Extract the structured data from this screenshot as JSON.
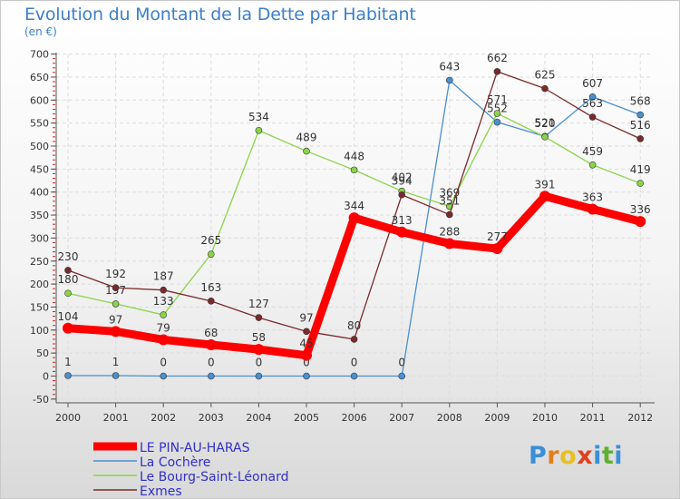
{
  "chart_data": {
    "type": "line",
    "title": "Evolution du Montant de la Dette par Habitant",
    "subtitle": "(en €)",
    "categories": [
      "2000",
      "2001",
      "2002",
      "2003",
      "2004",
      "2005",
      "2006",
      "2007",
      "2008",
      "2009",
      "2010",
      "2011",
      "2012"
    ],
    "ylim": [
      -50,
      700
    ],
    "yticks": [
      -50,
      0,
      50,
      100,
      150,
      200,
      250,
      300,
      350,
      400,
      450,
      500,
      550,
      600,
      650,
      700
    ],
    "grid": true,
    "legend_position": "bottom-left",
    "series": [
      {
        "name": "LE PIN-AU-HARAS",
        "color": "#ff0000",
        "values": [
          104,
          97,
          79,
          68,
          58,
          45,
          344,
          313,
          288,
          277,
          391,
          363,
          336
        ],
        "labels": [
          "104",
          "97",
          "79",
          "68",
          "58",
          "45",
          "344",
          "313",
          "288",
          "277",
          "391",
          "363",
          "336"
        ]
      },
      {
        "name": "La Cochère",
        "color": "#4a8fd0",
        "values": [
          1,
          1,
          0,
          0,
          0,
          0,
          0,
          0,
          643,
          552,
          521,
          607,
          568
        ],
        "labels": [
          "1",
          "1",
          "0",
          "0",
          "0",
          "0",
          "0",
          "0",
          "643",
          "552",
          "521",
          "607",
          "568"
        ]
      },
      {
        "name": "Le Bourg-Saint-Léonard",
        "color": "#8ad44a",
        "values": [
          180,
          157,
          133,
          265,
          534,
          489,
          448,
          402,
          369,
          571,
          520,
          459,
          419
        ],
        "labels": [
          "180",
          "157",
          "133",
          "265",
          "534",
          "489",
          "448",
          "402",
          "369",
          "571",
          "520",
          "459",
          "419"
        ]
      },
      {
        "name": "Exmes",
        "color": "#7a2a2a",
        "values": [
          230,
          192,
          187,
          163,
          127,
          97,
          80,
          394,
          351,
          662,
          625,
          563,
          516
        ],
        "labels": [
          "230",
          "192",
          "187",
          "163",
          "127",
          "97",
          "80",
          "394",
          "351",
          "662",
          "625",
          "563",
          "516"
        ]
      }
    ]
  },
  "logo": {
    "text": "Proxiti",
    "letters": [
      "P",
      "r",
      "o",
      "x",
      "i",
      "t",
      "i"
    ],
    "colors": [
      "#3a8fd8",
      "#e08020",
      "#e8c020",
      "#e04020",
      "#3a8fd8",
      "#60b030",
      "#3a8fd8"
    ]
  }
}
